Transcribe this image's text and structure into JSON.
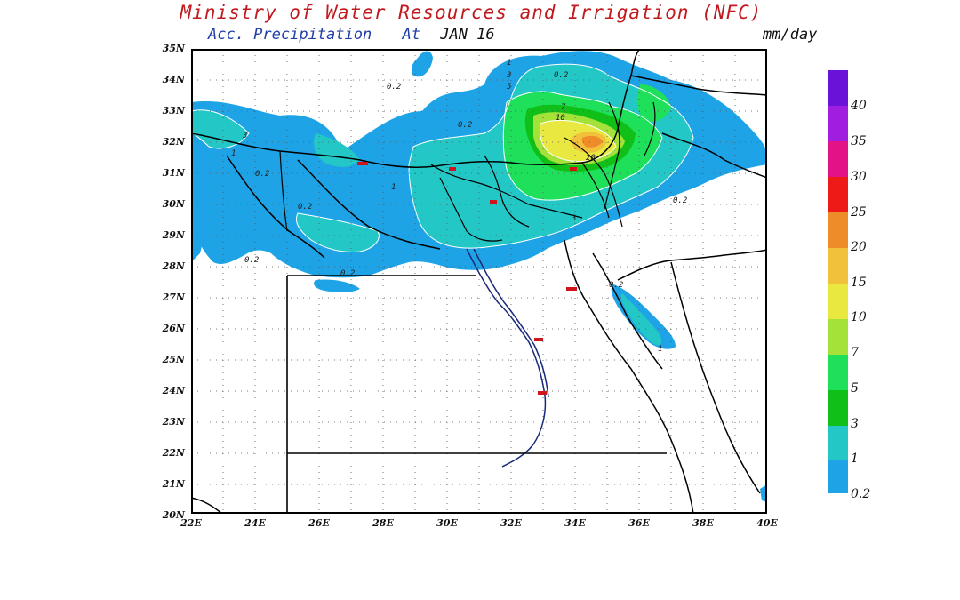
{
  "header": {
    "title": "Ministry of Water Resources and Irrigation (NFC)",
    "subtitle": "Acc. Precipitation",
    "date_prefix": "At",
    "date": "JAN 16",
    "units": "mm/day"
  },
  "axes": {
    "lat_labels": [
      "35N",
      "34N",
      "33N",
      "32N",
      "31N",
      "30N",
      "29N",
      "28N",
      "27N",
      "26N",
      "25N",
      "24N",
      "23N",
      "22N",
      "21N",
      "20N"
    ],
    "lon_labels": [
      "22E",
      "24E",
      "26E",
      "28E",
      "30E",
      "32E",
      "34E",
      "36E",
      "38E",
      "40E"
    ],
    "lat_range": [
      20,
      35
    ],
    "lon_range": [
      22,
      40
    ]
  },
  "legend": {
    "levels": [
      "0.2",
      "1",
      "3",
      "5",
      "7",
      "10",
      "15",
      "20",
      "25",
      "30",
      "35",
      "40"
    ],
    "colors": [
      "#1ea3e6",
      "#23c8c6",
      "#1ee05a",
      "#10c018",
      "#a4e23a",
      "#e8e841",
      "#f2c13c",
      "#ef8c2a",
      "#f23c1e",
      "#ee1a18",
      "#e11387",
      "#a01ee0",
      "#6a12d8"
    ]
  },
  "contour_labels": [
    {
      "text": "0.2"
    },
    {
      "text": "1"
    },
    {
      "text": "3"
    },
    {
      "text": "5"
    },
    {
      "text": "7"
    },
    {
      "text": "10"
    },
    {
      "text": "20"
    },
    {
      "text": "0.2"
    },
    {
      "text": "0.2"
    },
    {
      "text": "0.2"
    },
    {
      "text": "0.2"
    },
    {
      "text": "0.2"
    },
    {
      "text": "0.2"
    },
    {
      "text": "1"
    },
    {
      "text": "1"
    },
    {
      "text": "3"
    },
    {
      "text": "3"
    },
    {
      "text": "1"
    },
    {
      "text": "0.2"
    },
    {
      "text": "0.2"
    }
  ]
}
